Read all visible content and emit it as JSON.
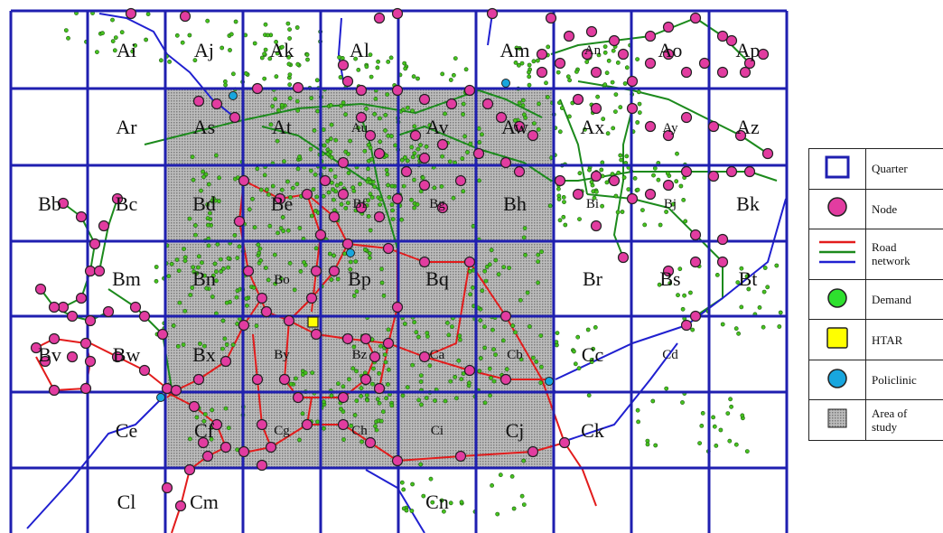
{
  "map": {
    "columns": 10,
    "rows": 7,
    "colors": {
      "quarter_line": "#1f1fb0",
      "study_area": "#a7a7a7",
      "node_fill": "#e23ca0",
      "demand_fill": "#46c21e",
      "htar_fill": "#ffff00",
      "policlinic_fill": "#18a6de",
      "road_red": "#e21c1c",
      "road_green": "#1c8a1c",
      "road_blue": "#2020d0"
    },
    "quarter_labels": [
      {
        "text": "Ai",
        "col": 1,
        "row": 0
      },
      {
        "text": "Aj",
        "col": 2,
        "row": 0
      },
      {
        "text": "Ak",
        "col": 3,
        "row": 0
      },
      {
        "text": "Al",
        "col": 4,
        "row": 0
      },
      {
        "text": "Am",
        "col": 6,
        "row": 0
      },
      {
        "text": "An",
        "col": 7,
        "row": 0
      },
      {
        "text": "Ao",
        "col": 8,
        "row": 0
      },
      {
        "text": "Ap",
        "col": 9,
        "row": 0
      },
      {
        "text": "Ar",
        "col": 1,
        "row": 1
      },
      {
        "text": "As",
        "col": 2,
        "row": 1
      },
      {
        "text": "At",
        "col": 3,
        "row": 1
      },
      {
        "text": "Au",
        "col": 4,
        "row": 1
      },
      {
        "text": "Av",
        "col": 5,
        "row": 1
      },
      {
        "text": "Aw",
        "col": 6,
        "row": 1
      },
      {
        "text": "Ax",
        "col": 7,
        "row": 1
      },
      {
        "text": "Ay",
        "col": 8,
        "row": 1
      },
      {
        "text": "Az",
        "col": 9,
        "row": 1
      },
      {
        "text": "Bb",
        "col": 0,
        "row": 2
      },
      {
        "text": "Bc",
        "col": 1,
        "row": 2
      },
      {
        "text": "Bd",
        "col": 2,
        "row": 2
      },
      {
        "text": "Be",
        "col": 3,
        "row": 2
      },
      {
        "text": "Bf",
        "col": 4,
        "row": 2
      },
      {
        "text": "Bg",
        "col": 5,
        "row": 2
      },
      {
        "text": "Bh",
        "col": 6,
        "row": 2
      },
      {
        "text": "Bi",
        "col": 7,
        "row": 2
      },
      {
        "text": "Bj",
        "col": 8,
        "row": 2
      },
      {
        "text": "Bk",
        "col": 9,
        "row": 2
      },
      {
        "text": "Bm",
        "col": 1,
        "row": 3
      },
      {
        "text": "Bn",
        "col": 2,
        "row": 3
      },
      {
        "text": "Bo",
        "col": 3,
        "row": 3
      },
      {
        "text": "Bp",
        "col": 4,
        "row": 3
      },
      {
        "text": "Bq",
        "col": 5,
        "row": 3
      },
      {
        "text": "Br",
        "col": 7,
        "row": 3
      },
      {
        "text": "Bs",
        "col": 8,
        "row": 3
      },
      {
        "text": "Bt",
        "col": 9,
        "row": 3
      },
      {
        "text": "Bv",
        "col": 0,
        "row": 4
      },
      {
        "text": "Bw",
        "col": 1,
        "row": 4
      },
      {
        "text": "Bx",
        "col": 2,
        "row": 4
      },
      {
        "text": "By",
        "col": 3,
        "row": 4
      },
      {
        "text": "Bz",
        "col": 4,
        "row": 4
      },
      {
        "text": "Ca",
        "col": 5,
        "row": 4
      },
      {
        "text": "Cb",
        "col": 6,
        "row": 4
      },
      {
        "text": "Cc",
        "col": 7,
        "row": 4
      },
      {
        "text": "Cd",
        "col": 8,
        "row": 4
      },
      {
        "text": "Ce",
        "col": 1,
        "row": 5
      },
      {
        "text": "Cf",
        "col": 2,
        "row": 5
      },
      {
        "text": "Cg",
        "col": 3,
        "row": 5
      },
      {
        "text": "Ch",
        "col": 4,
        "row": 5
      },
      {
        "text": "Ci",
        "col": 5,
        "row": 5
      },
      {
        "text": "Cj",
        "col": 6,
        "row": 5
      },
      {
        "text": "Ck",
        "col": 7,
        "row": 5
      },
      {
        "text": "Cl",
        "col": 1,
        "row": 6
      },
      {
        "text": "Cm",
        "col": 2,
        "row": 6
      },
      {
        "text": "Cn",
        "col": 5,
        "row": 6
      }
    ]
  },
  "legend": {
    "items": [
      {
        "icon": "quarter-square-icon",
        "label": "Quarter"
      },
      {
        "icon": "node-circle-icon",
        "label": "Node"
      },
      {
        "icon": "road-lines-icon",
        "label_line1": "Road",
        "label_line2": "network"
      },
      {
        "icon": "demand-circle-icon",
        "label": "Demand"
      },
      {
        "icon": "htar-square-icon",
        "label": "HTAR"
      },
      {
        "icon": "policlinic-circle-icon",
        "label": "Policlinic"
      },
      {
        "icon": "study-area-swatch-icon",
        "label_line1": "Area of",
        "label_line2": "study"
      }
    ]
  }
}
